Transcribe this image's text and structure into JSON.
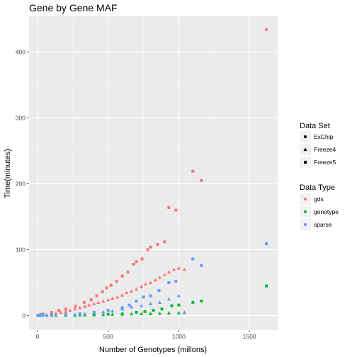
{
  "chart_data": {
    "type": "scatter",
    "title": "Gene by Gene MAF",
    "xlabel": "Number of Genotypes (millons)",
    "ylabel": "Time(minutes)",
    "xlim": [
      -60,
      1700
    ],
    "ylim": [
      -22,
      454
    ],
    "x_ticks": [
      0,
      500,
      1000,
      1500
    ],
    "y_ticks": [
      0,
      100,
      200,
      300,
      400
    ],
    "grid": true,
    "legend_placement": "right",
    "legends": [
      {
        "title": "Data Set",
        "kind": "shape",
        "entries": [
          {
            "label": "ExChip",
            "shape": "circle"
          },
          {
            "label": "Freeze4",
            "shape": "triangle"
          },
          {
            "label": "Freeze5",
            "shape": "square"
          }
        ]
      },
      {
        "title": "Data Type",
        "kind": "color",
        "entries": [
          {
            "label": "gds",
            "color": "#F8766D"
          },
          {
            "label": "genotype",
            "color": "#00BA38"
          },
          {
            "label": "sparse",
            "color": "#619CFF"
          }
        ]
      }
    ],
    "series": [
      {
        "data_set": "ExChip",
        "data_type": "gds",
        "points": [
          [
            2,
            0.3
          ],
          [
            5,
            0.4
          ],
          [
            8,
            0.6
          ],
          [
            12,
            0.8
          ],
          [
            16,
            1.0
          ],
          [
            20,
            1.2
          ],
          [
            25,
            1.5
          ],
          [
            30,
            1.8
          ],
          [
            35,
            2.1
          ],
          [
            40,
            2.4
          ]
        ]
      },
      {
        "data_set": "ExChip",
        "data_type": "genotype",
        "points": [
          [
            2,
            0.1
          ],
          [
            5,
            0.2
          ],
          [
            8,
            0.2
          ],
          [
            12,
            0.3
          ],
          [
            16,
            0.3
          ],
          [
            20,
            0.4
          ],
          [
            25,
            0.5
          ],
          [
            30,
            0.5
          ],
          [
            35,
            0.6
          ],
          [
            40,
            0.7
          ]
        ]
      },
      {
        "data_set": "ExChip",
        "data_type": "sparse",
        "points": [
          [
            2,
            0.2
          ],
          [
            5,
            0.3
          ],
          [
            8,
            0.3
          ],
          [
            12,
            0.4
          ],
          [
            16,
            0.5
          ],
          [
            20,
            0.6
          ],
          [
            25,
            0.7
          ],
          [
            30,
            0.8
          ],
          [
            35,
            0.9
          ],
          [
            40,
            1.0
          ]
        ]
      },
      {
        "data_set": "Freeze4",
        "data_type": "gds",
        "points": [
          [
            65,
            1.5
          ],
          [
            100,
            2.5
          ],
          [
            130,
            3.5
          ],
          [
            165,
            5
          ],
          [
            200,
            6.5
          ],
          [
            230,
            8
          ],
          [
            265,
            10
          ],
          [
            300,
            12
          ],
          [
            335,
            14
          ],
          [
            365,
            16
          ],
          [
            400,
            18
          ],
          [
            430,
            20
          ],
          [
            465,
            22
          ],
          [
            500,
            24
          ],
          [
            530,
            26
          ],
          [
            565,
            28
          ],
          [
            600,
            31
          ],
          [
            630,
            35
          ],
          [
            665,
            37
          ],
          [
            700,
            40
          ],
          [
            735,
            44
          ],
          [
            765,
            48
          ],
          [
            800,
            50
          ],
          [
            835,
            54
          ],
          [
            865,
            58
          ],
          [
            900,
            62
          ],
          [
            930,
            66
          ],
          [
            965,
            70
          ],
          [
            1000,
            72
          ],
          [
            1040,
            70
          ]
        ]
      },
      {
        "data_set": "Freeze4",
        "data_type": "genotype",
        "points": [
          [
            65,
            0.2
          ],
          [
            130,
            0.4
          ],
          [
            200,
            0.6
          ],
          [
            265,
            0.8
          ],
          [
            335,
            1.0
          ],
          [
            400,
            1.3
          ],
          [
            465,
            1.5
          ],
          [
            530,
            1.8
          ],
          [
            600,
            2.1
          ],
          [
            665,
            2.5
          ],
          [
            735,
            2.8
          ],
          [
            800,
            3.1
          ],
          [
            865,
            3.5
          ],
          [
            930,
            3.9
          ],
          [
            1000,
            4.2
          ],
          [
            1040,
            4.5
          ]
        ]
      },
      {
        "data_set": "Freeze4",
        "data_type": "sparse",
        "points": [
          [
            65,
            0.5
          ],
          [
            130,
            1.0
          ],
          [
            200,
            1.5
          ],
          [
            265,
            2.0
          ],
          [
            335,
            3.0
          ],
          [
            400,
            4.0
          ],
          [
            465,
            5.5
          ],
          [
            530,
            7
          ],
          [
            600,
            10
          ],
          [
            665,
            13
          ],
          [
            735,
            15
          ],
          [
            800,
            18
          ],
          [
            865,
            20
          ],
          [
            930,
            25
          ],
          [
            1000,
            30
          ],
          [
            1040,
            5
          ]
        ]
      },
      {
        "data_set": "Freeze5",
        "data_type": "gds",
        "points": [
          [
            100,
            5
          ],
          [
            150,
            8
          ],
          [
            200,
            10
          ],
          [
            270,
            14
          ],
          [
            330,
            20
          ],
          [
            380,
            24
          ],
          [
            420,
            30
          ],
          [
            460,
            36
          ],
          [
            490,
            42
          ],
          [
            520,
            46
          ],
          [
            560,
            52
          ],
          [
            600,
            60
          ],
          [
            640,
            66
          ],
          [
            680,
            78
          ],
          [
            700,
            82
          ],
          [
            740,
            86
          ],
          [
            780,
            100
          ],
          [
            800,
            104
          ],
          [
            850,
            108
          ],
          [
            900,
            112
          ],
          [
            930,
            164
          ],
          [
            980,
            160
          ],
          [
            1100,
            219
          ],
          [
            1160,
            205
          ],
          [
            1620,
            434
          ]
        ]
      },
      {
        "data_set": "Freeze5",
        "data_type": "genotype",
        "points": [
          [
            100,
            0.3
          ],
          [
            200,
            0.6
          ],
          [
            300,
            1.0
          ],
          [
            400,
            1.5
          ],
          [
            500,
            2.0
          ],
          [
            600,
            2.5
          ],
          [
            700,
            5
          ],
          [
            760,
            6
          ],
          [
            820,
            8
          ],
          [
            880,
            10
          ],
          [
            950,
            15
          ],
          [
            1000,
            16
          ],
          [
            1100,
            20
          ],
          [
            1160,
            22
          ],
          [
            1620,
            45
          ]
        ]
      },
      {
        "data_set": "Freeze5",
        "data_type": "sparse",
        "points": [
          [
            100,
            1
          ],
          [
            200,
            2
          ],
          [
            300,
            3
          ],
          [
            400,
            5
          ],
          [
            500,
            8
          ],
          [
            600,
            12
          ],
          [
            650,
            16
          ],
          [
            700,
            22
          ],
          [
            750,
            28
          ],
          [
            800,
            30
          ],
          [
            860,
            38
          ],
          [
            930,
            50
          ],
          [
            980,
            52
          ],
          [
            1100,
            86
          ],
          [
            1160,
            76
          ],
          [
            1620,
            109
          ]
        ]
      }
    ]
  }
}
